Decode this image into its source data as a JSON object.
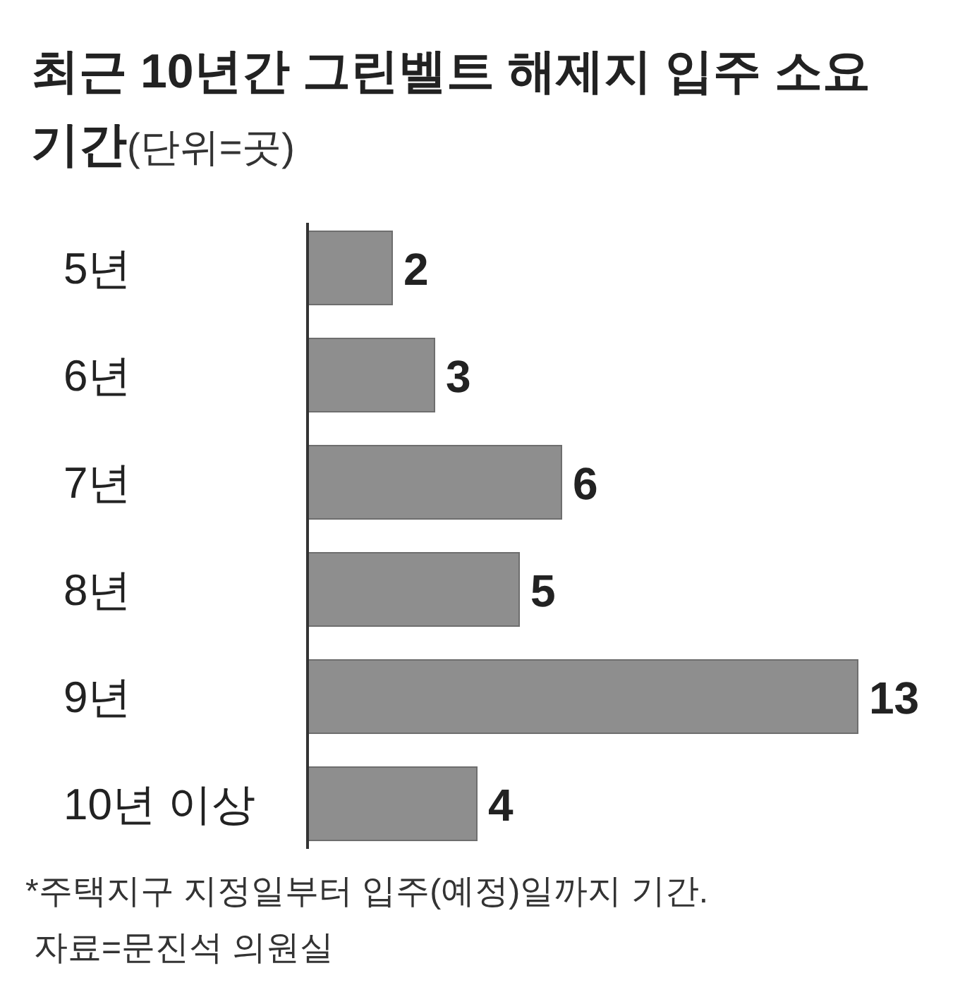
{
  "chart_data": {
    "type": "bar",
    "orientation": "horizontal",
    "title": "최근 10년간 그린벨트 해제지 입주 소요 기간",
    "subtitle": "(단위=곳)",
    "categories": [
      "5년",
      "6년",
      "7년",
      "8년",
      "9년",
      "10년 이상"
    ],
    "values": [
      2,
      3,
      6,
      5,
      13,
      4
    ],
    "color": "#8e8e8e",
    "data_labels": true,
    "annotations": [
      "*주택지구 지정일부터 입주(예정)일까지 기간.",
      "자료=문진석 의원실"
    ]
  }
}
